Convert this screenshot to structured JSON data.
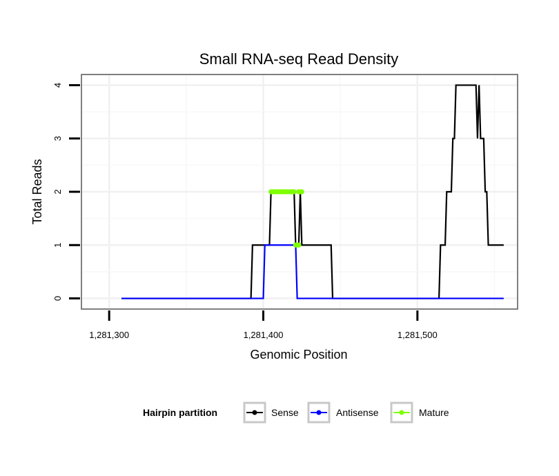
{
  "chart_data": {
    "type": "line",
    "title": "Small RNA-seq Read Density",
    "xlabel": "Genomic Position",
    "ylabel": "Total Reads",
    "xlim": [
      1281282,
      1281565
    ],
    "ylim": [
      -0.2,
      4.2
    ],
    "x_ticks": [
      1281300,
      1281400,
      1281500
    ],
    "x_tick_labels": [
      "1,281,300",
      "1,281,400",
      "1,281,500"
    ],
    "y_ticks": [
      0,
      1,
      2,
      3,
      4
    ],
    "y_tick_labels": [
      "0",
      "1",
      "2",
      "3",
      "4"
    ],
    "grid": true,
    "legend": {
      "title": "Hairpin partition",
      "position": "bottom",
      "entries": [
        {
          "name": "Sense",
          "color": "#000000"
        },
        {
          "name": "Antisense",
          "color": "#0000ff"
        },
        {
          "name": "Mature",
          "color": "#7fff00"
        }
      ]
    },
    "series": [
      {
        "name": "Sense",
        "color": "#000000",
        "points": [
          [
            1281308,
            0
          ],
          [
            1281392,
            0
          ],
          [
            1281393,
            1
          ],
          [
            1281404,
            1
          ],
          [
            1281405,
            2
          ],
          [
            1281420,
            2
          ],
          [
            1281421,
            1
          ],
          [
            1281423,
            1
          ],
          [
            1281424,
            2
          ],
          [
            1281425,
            1
          ],
          [
            1281444,
            1
          ],
          [
            1281445,
            0
          ],
          [
            1281514,
            0
          ],
          [
            1281515,
            1
          ],
          [
            1281518,
            1
          ],
          [
            1281519,
            2
          ],
          [
            1281522,
            2
          ],
          [
            1281523,
            3
          ],
          [
            1281524,
            3
          ],
          [
            1281525,
            4
          ],
          [
            1281538,
            4
          ],
          [
            1281539,
            3
          ],
          [
            1281540,
            4
          ],
          [
            1281541,
            3
          ],
          [
            1281543,
            3
          ],
          [
            1281544,
            2
          ],
          [
            1281545,
            2
          ],
          [
            1281546,
            1
          ],
          [
            1281556,
            1
          ]
        ]
      },
      {
        "name": "Antisense",
        "color": "#0000ff",
        "points": [
          [
            1281308,
            0
          ],
          [
            1281400,
            0
          ],
          [
            1281401,
            1
          ],
          [
            1281421,
            1
          ],
          [
            1281422,
            0
          ],
          [
            1281556,
            0
          ]
        ]
      },
      {
        "name": "Mature",
        "color": "#7fff00",
        "segments": [
          [
            [
              1281405,
              2
            ],
            [
              1281420,
              2
            ]
          ],
          [
            [
              1281421,
              1
            ],
            [
              1281423,
              1
            ]
          ],
          [
            [
              1281423,
              2
            ],
            [
              1281425,
              2
            ]
          ]
        ]
      }
    ]
  }
}
